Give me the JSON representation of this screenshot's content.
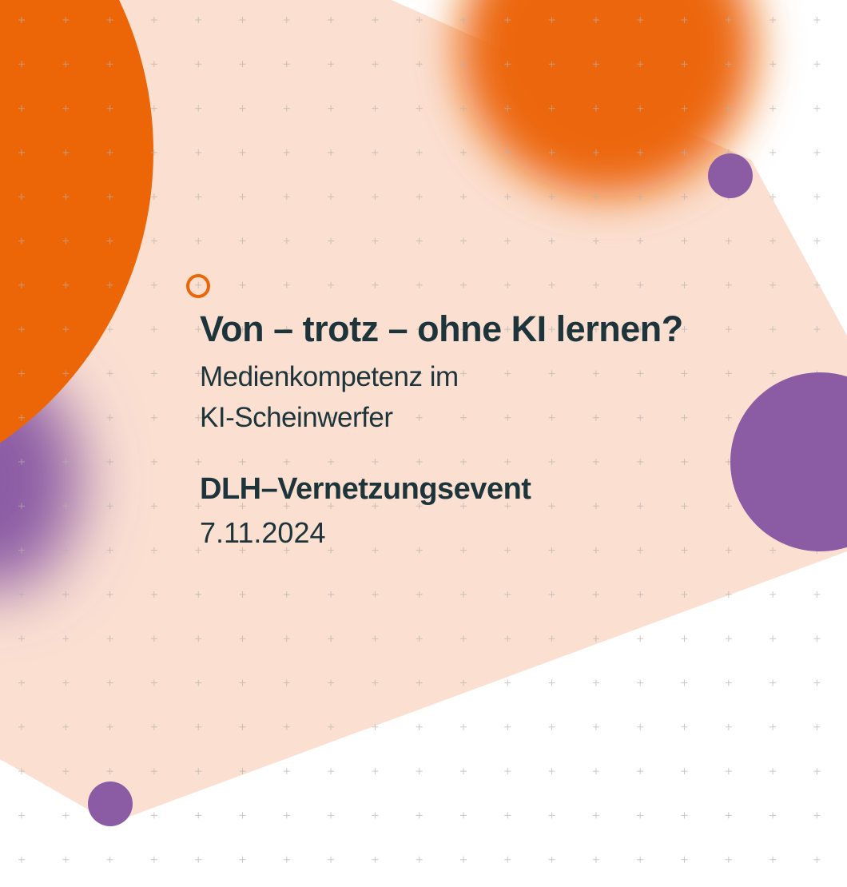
{
  "poster": {
    "title": "Von – trotz – ohne KI lernen?",
    "subtitle_line1": "Medienkompetenz im",
    "subtitle_line2": "KI-Scheinwerfer",
    "event": "DLH–Vernetzungsevent",
    "date": "7.11.2024"
  },
  "colors": {
    "orange": "#ec6608",
    "purple": "#8b5ca4",
    "peach": "#fbe0d2",
    "text": "#1d343a",
    "grid": "#b8b0aa"
  }
}
